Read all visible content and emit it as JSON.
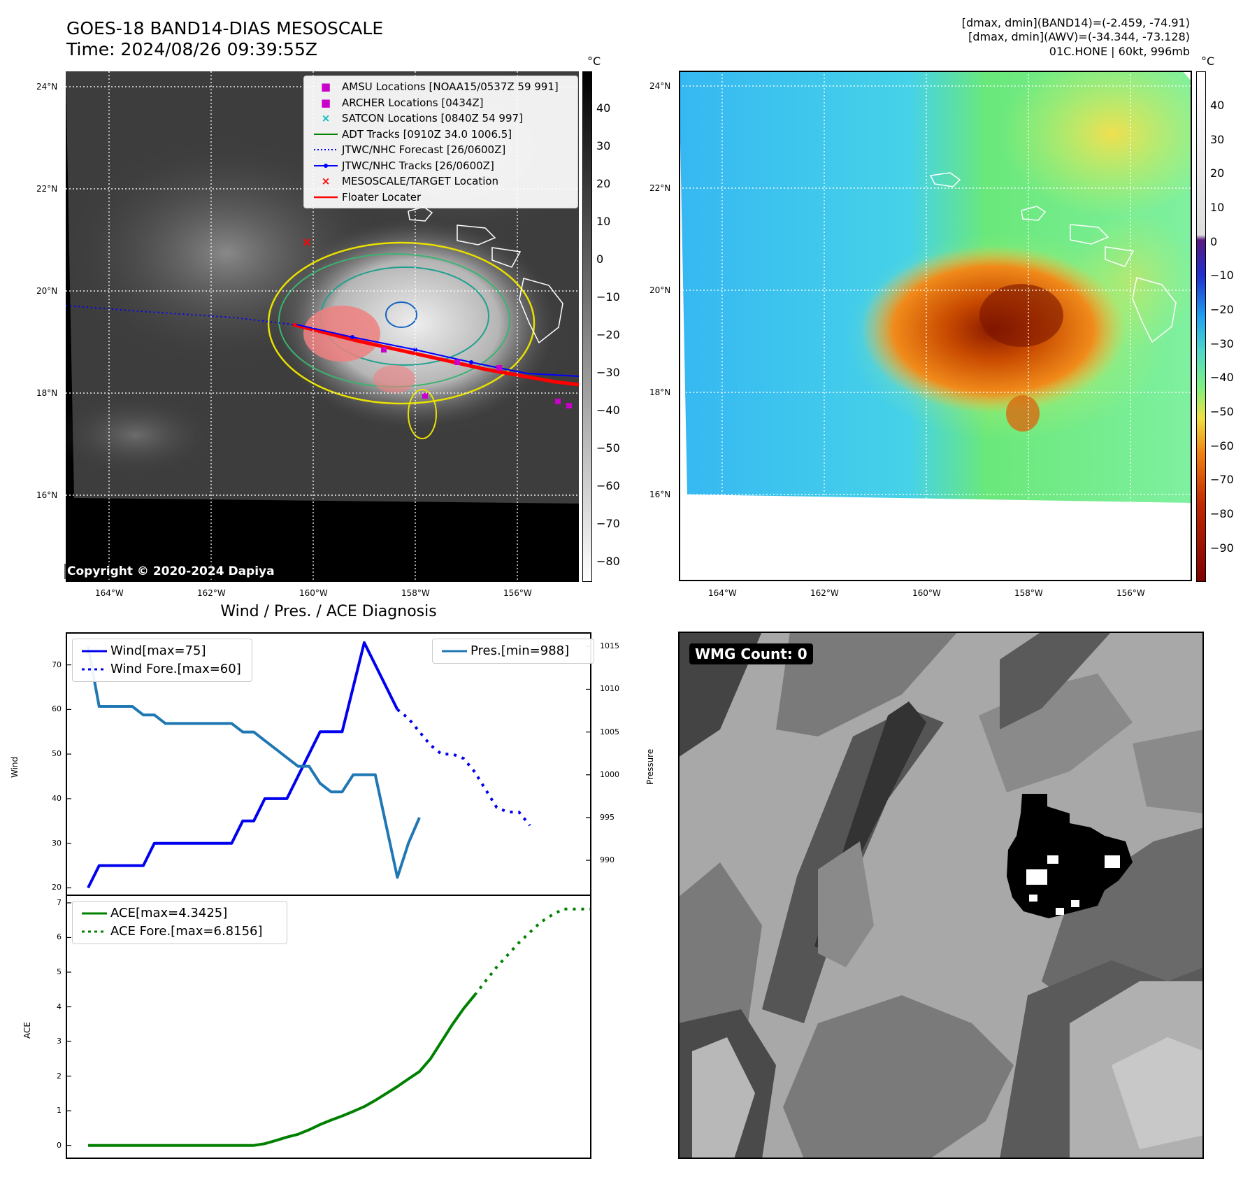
{
  "header": {
    "title_line1": "GOES-18 BAND14-DIAS MESOSCALE",
    "title_line2": "Time: 2024/08/26 09:39:55Z",
    "right_line1": "[dmax, dmin](BAND14)=(-2.459, -74.91)",
    "right_line2": "[dmax, dmin](AWV)=(-34.344, -73.128)",
    "right_line3": "01C.HONE | 60kt, 996mb"
  },
  "map": {
    "lat_ticks": [
      "24°N",
      "22°N",
      "20°N",
      "18°N",
      "16°N"
    ],
    "lon_ticks": [
      "164°W",
      "162°W",
      "160°W",
      "158°W",
      "156°W"
    ],
    "copyright": "Copyright © 2020-2024 Dapiya",
    "legend": [
      {
        "label": "AMSU Locations [NOAA15/0537Z 59 991]",
        "marker": "■",
        "color": "#c800c8"
      },
      {
        "label": "ARCHER Locations [0434Z]",
        "marker": "■",
        "color": "#c800c8"
      },
      {
        "label": "SATCON Locations [0840Z 54 997]",
        "marker": "×",
        "color": "#00bcbc"
      },
      {
        "label": "ADT Tracks [0910Z 34.0 1006.5]",
        "marker": "line",
        "color": "#008000"
      },
      {
        "label": "JTWC/NHC Forecast [26/0600Z]",
        "marker": "dotted",
        "color": "#0000ff"
      },
      {
        "label": "JTWC/NHC Tracks [26/0600Z]",
        "marker": "dotline",
        "color": "#0000ff"
      },
      {
        "label": "MESOSCALE/TARGET Location",
        "marker": "×",
        "color": "#ff0000"
      },
      {
        "label": "Floater Locater",
        "marker": "line",
        "color": "#ff0000"
      }
    ]
  },
  "colorbar_ir": {
    "unit": "°C",
    "ticks": [
      "40",
      "30",
      "20",
      "10",
      "0",
      "−10",
      "−20",
      "−30",
      "−40",
      "−50",
      "−60",
      "−70",
      "−80"
    ]
  },
  "colorbar_wv": {
    "unit": "°C",
    "ticks": [
      "40",
      "30",
      "20",
      "10",
      "0",
      "−10",
      "−20",
      "−30",
      "−40",
      "−50",
      "−60",
      "−70",
      "−80",
      "−90"
    ]
  },
  "diagnosis": {
    "title": "Wind / Pres. / ACE Diagnosis",
    "wind_axis_label": "Wind",
    "pressure_axis_label": "Pressure",
    "ace_axis_label": "ACE",
    "legend_wind": "Wind[max=75]",
    "legend_wind_fore": "Wind Fore.[max=60]",
    "legend_pres": "Pres.[min=988]",
    "legend_ace": "ACE[max=4.3425]",
    "legend_ace_fore": "ACE Fore.[max=6.8156]",
    "wmg_count": "WMG Count: 0"
  },
  "chart_data": [
    {
      "type": "line",
      "ylabel": "Wind",
      "y2label": "Pressure",
      "ylim": [
        18.5,
        77
      ],
      "y2lim": [
        986,
        1016.5
      ],
      "yticks": [
        20,
        30,
        40,
        50,
        60,
        70
      ],
      "y2ticks": [
        990,
        995,
        1000,
        1005,
        1010,
        1015
      ],
      "x_count": 47,
      "series": [
        {
          "name": "Wind[max=75]",
          "color": "#0000ee",
          "style": "solid",
          "values": [
            20,
            25,
            25,
            25,
            25,
            25,
            30,
            30,
            30,
            30,
            30,
            30,
            30,
            30,
            35,
            35,
            40,
            40,
            40,
            45,
            50,
            55,
            55,
            55,
            65,
            75,
            70,
            65,
            60
          ]
        },
        {
          "name": "Wind Fore.[max=60]",
          "color": "#0000ee",
          "style": "dotted",
          "x_start": 28,
          "values": [
            60,
            58,
            55,
            52,
            50,
            50,
            49,
            46,
            42,
            38,
            37,
            37,
            34
          ]
        },
        {
          "name": "Pres.[min=988]",
          "color": "#1f77b4",
          "style": "solid",
          "axis": "right",
          "values": [
            1015,
            1008,
            1008,
            1008,
            1008,
            1007,
            1007,
            1006,
            1006,
            1006,
            1006,
            1006,
            1006,
            1006,
            1005,
            1005,
            1004,
            1003,
            1002,
            1001,
            1001,
            999,
            998,
            998,
            1000,
            1000,
            1000,
            994,
            988,
            992,
            995
          ]
        }
      ]
    },
    {
      "type": "line",
      "ylabel": "ACE",
      "ylim": [
        -0.35,
        7.2
      ],
      "yticks": [
        0,
        1,
        2,
        3,
        4,
        5,
        6,
        7
      ],
      "x_count": 47,
      "series": [
        {
          "name": "ACE[max=4.3425]",
          "color": "#008000",
          "style": "solid",
          "values": [
            0,
            0,
            0,
            0,
            0,
            0,
            0,
            0,
            0,
            0,
            0,
            0,
            0,
            0,
            0,
            0,
            0.05,
            0.14,
            0.24,
            0.32,
            0.45,
            0.6,
            0.73,
            0.85,
            0.98,
            1.12,
            1.3,
            1.5,
            1.7,
            1.92,
            2.13,
            2.5,
            3.0,
            3.5,
            3.95,
            4.34
          ]
        },
        {
          "name": "ACE Fore.[max=6.8156]",
          "color": "#008000",
          "style": "dotted",
          "x_start": 35,
          "values": [
            4.34,
            4.75,
            5.15,
            5.5,
            5.85,
            6.15,
            6.45,
            6.65,
            6.82,
            6.82,
            6.82,
            6.82
          ]
        }
      ]
    }
  ]
}
